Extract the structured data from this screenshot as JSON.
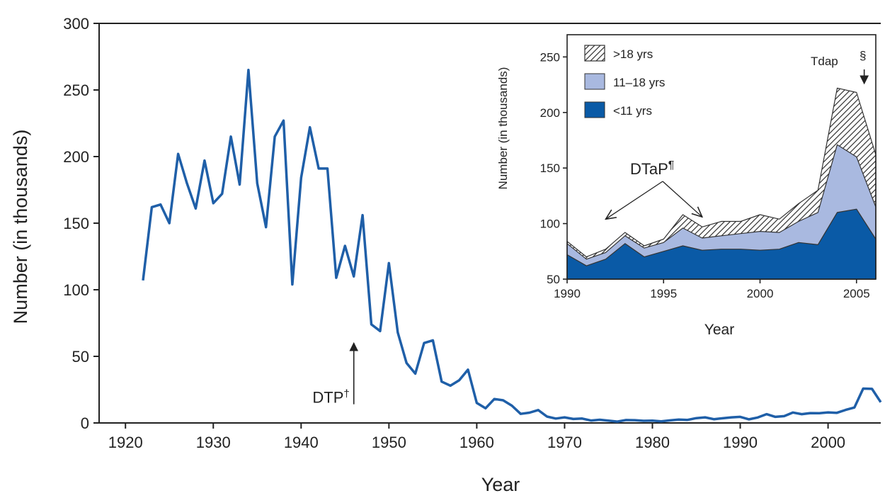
{
  "chart_data": [
    {
      "type": "line",
      "xlabel": "Year",
      "ylabel": "Number (in thousands)",
      "xlim": [
        1917,
        2006
      ],
      "ylim": [
        0,
        300
      ],
      "x_ticks": [
        "1920",
        "1930",
        "1940",
        "1950",
        "1960",
        "1970",
        "1980",
        "1990",
        "2000"
      ],
      "y_ticks": [
        "0",
        "50",
        "100",
        "150",
        "200",
        "250",
        "300"
      ],
      "series": [
        {
          "color": "#1f5fa8",
          "points": [
            [
              1922,
              107
            ],
            [
              1923,
              162
            ],
            [
              1924,
              164
            ],
            [
              1925,
              150
            ],
            [
              1926,
              202
            ],
            [
              1927,
              180
            ],
            [
              1928,
              161
            ],
            [
              1929,
              197
            ],
            [
              1930,
              165
            ],
            [
              1931,
              172
            ],
            [
              1932,
              215
            ],
            [
              1933,
              179
            ],
            [
              1934,
              265
            ],
            [
              1935,
              180
            ],
            [
              1936,
              147
            ],
            [
              1937,
              215
            ],
            [
              1938,
              227
            ],
            [
              1939,
              104
            ],
            [
              1940,
              184
            ],
            [
              1941,
              222
            ],
            [
              1942,
              191
            ],
            [
              1943,
              191
            ],
            [
              1944,
              109
            ],
            [
              1945,
              133
            ],
            [
              1946,
              110
            ],
            [
              1947,
              156
            ],
            [
              1948,
              74
            ],
            [
              1949,
              69
            ],
            [
              1950,
              120
            ],
            [
              1951,
              68
            ],
            [
              1952,
              45
            ],
            [
              1953,
              37
            ],
            [
              1954,
              60
            ],
            [
              1955,
              62
            ],
            [
              1956,
              31
            ],
            [
              1957,
              28
            ],
            [
              1958,
              32
            ],
            [
              1959,
              40
            ],
            [
              1960,
              15
            ],
            [
              1961,
              11
            ],
            [
              1962,
              18
            ],
            [
              1963,
              17
            ],
            [
              1964,
              13
            ],
            [
              1965,
              6.8
            ],
            [
              1966,
              7.7
            ],
            [
              1967,
              9.7
            ],
            [
              1968,
              4.8
            ],
            [
              1969,
              3.3
            ],
            [
              1970,
              4.2
            ],
            [
              1971,
              3.0
            ],
            [
              1972,
              3.3
            ],
            [
              1973,
              1.8
            ],
            [
              1974,
              2.4
            ],
            [
              1975,
              1.7
            ],
            [
              1976,
              1.0
            ],
            [
              1977,
              2.2
            ],
            [
              1978,
              2.1
            ],
            [
              1979,
              1.6
            ],
            [
              1980,
              1.7
            ],
            [
              1981,
              1.2
            ],
            [
              1982,
              1.9
            ],
            [
              1983,
              2.5
            ],
            [
              1984,
              2.3
            ],
            [
              1985,
              3.6
            ],
            [
              1986,
              4.2
            ],
            [
              1987,
              2.8
            ],
            [
              1988,
              3.5
            ],
            [
              1989,
              4.2
            ],
            [
              1990,
              4.6
            ],
            [
              1991,
              2.7
            ],
            [
              1992,
              4.1
            ],
            [
              1993,
              6.6
            ],
            [
              1994,
              4.6
            ],
            [
              1995,
              5.1
            ],
            [
              1996,
              7.8
            ],
            [
              1997,
              6.6
            ],
            [
              1998,
              7.4
            ],
            [
              1999,
              7.3
            ],
            [
              2000,
              7.9
            ],
            [
              2001,
              7.6
            ],
            [
              2002,
              9.8
            ],
            [
              2003,
              11.6
            ],
            [
              2004,
              25.8
            ],
            [
              2005,
              25.6
            ],
            [
              2006,
              15.6
            ]
          ]
        }
      ],
      "annotations": [
        {
          "text": "DTP",
          "superscript": "†",
          "arrow_year": 1946,
          "arrow_from": 14,
          "arrow_to": 60
        }
      ]
    },
    {
      "type": "area",
      "stacked": true,
      "xlabel": "Year",
      "ylabel": "Number (in thousands)",
      "xlim": [
        1990,
        2006
      ],
      "ylim": [
        50,
        270
      ],
      "x_ticks": [
        "1990",
        "1995",
        "2000",
        "2005"
      ],
      "y_ticks": [
        "50",
        "100",
        "150",
        "200",
        "250"
      ],
      "x": [
        1990,
        1991,
        1992,
        1993,
        1994,
        1995,
        1996,
        1997,
        1998,
        1999,
        2000,
        2001,
        2002,
        2003,
        2004,
        2005,
        2006
      ],
      "series": [
        {
          "name": "<11 yrs",
          "color": "#0a5aa6",
          "values": [
            72,
            62,
            68,
            82,
            70,
            75,
            80,
            76,
            77,
            77,
            76,
            77,
            83,
            81,
            110,
            113,
            86
          ]
        },
        {
          "name": "11–18 yrs",
          "color": "#a9b9e0",
          "values": [
            82,
            68,
            74,
            89,
            78,
            83,
            96,
            87,
            89,
            91,
            93,
            92,
            102,
            110,
            171,
            160,
            115
          ]
        },
        {
          "name": ">18 yrs",
          "color": "#ffffff",
          "pattern": "diagonal-hatch",
          "values": [
            84,
            70,
            77,
            92,
            80,
            86,
            108,
            97,
            102,
            102,
            108,
            104,
            118,
            130,
            222,
            218,
            162
          ]
        }
      ],
      "legend": {
        "position": "top-left",
        "order": [
          ">18 yrs",
          "11–18 yrs",
          "<11 yrs"
        ]
      },
      "annotations": [
        {
          "text": "DTaP",
          "superscript": "¶",
          "arrows_to": [
            [
              1992,
              104
            ],
            [
              1997,
              106
            ]
          ]
        },
        {
          "text": "Tdap",
          "superscript": "§",
          "arrow_year": 2005.4,
          "arrow_to": 226
        }
      ]
    }
  ]
}
